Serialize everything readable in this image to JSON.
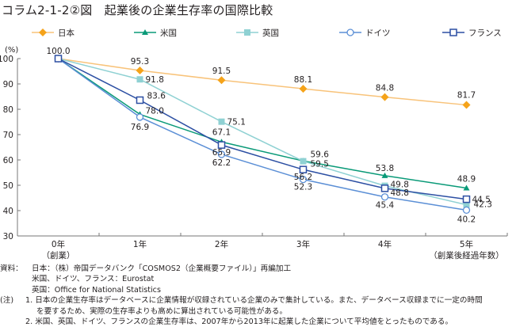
{
  "title": "コラム2-1-2②図　起業後の企業生存率の国際比較",
  "chart_data": {
    "type": "line",
    "title": "起業後の企業生存率の国際比較",
    "ylabel": "(%)",
    "xlabel": "（創業後経過年数）",
    "ylim": [
      30,
      100
    ],
    "yticks": [
      30,
      40,
      50,
      60,
      70,
      80,
      90,
      100
    ],
    "grid": false,
    "legend_position": "top",
    "categories": [
      "0年",
      "1年",
      "2年",
      "3年",
      "4年",
      "5年"
    ],
    "category_sublabels": [
      "（創業）",
      "",
      "",
      "",
      "",
      "（創業後経過年数）"
    ],
    "series": [
      {
        "name": "日本",
        "marker": "diamond-filled",
        "color": "#f5a31a",
        "line_color": "#f8c37a",
        "values": [
          100.0,
          95.3,
          91.5,
          88.1,
          84.8,
          81.7
        ]
      },
      {
        "name": "米国",
        "marker": "triangle-filled",
        "color": "#0a9a78",
        "line_color": "#0a9a78",
        "values": [
          100.0,
          78.0,
          67.1,
          59.6,
          53.8,
          48.9
        ]
      },
      {
        "name": "英国",
        "marker": "square-filled",
        "color": "#8fd1d3",
        "line_color": "#8fd1d3",
        "values": [
          100.0,
          91.8,
          75.1,
          59.5,
          49.8,
          42.3
        ]
      },
      {
        "name": "ドイツ",
        "marker": "circle-open",
        "color": "#5b8fd6",
        "line_color": "#5b8fd6",
        "values": [
          100.0,
          76.9,
          62.2,
          52.3,
          45.4,
          40.2
        ]
      },
      {
        "name": "フランス",
        "marker": "square-open",
        "color": "#2c4fa3",
        "line_color": "#2c4fa3",
        "values": [
          100.0,
          83.6,
          65.9,
          56.2,
          48.8,
          44.5
        ]
      }
    ],
    "data_labels": [
      {
        "series": "フランス",
        "index": 0,
        "text": "100.0"
      },
      {
        "series": "日本",
        "index": 1,
        "text": "95.3"
      },
      {
        "series": "英国",
        "index": 1,
        "text": "91.8"
      },
      {
        "series": "フランス",
        "index": 1,
        "text": "83.6"
      },
      {
        "series": "米国",
        "index": 1,
        "text": "78.0"
      },
      {
        "series": "ドイツ",
        "index": 1,
        "text": "76.9"
      },
      {
        "series": "日本",
        "index": 2,
        "text": "91.5"
      },
      {
        "series": "英国",
        "index": 2,
        "text": "75.1"
      },
      {
        "series": "米国",
        "index": 2,
        "text": "67.1"
      },
      {
        "series": "フランス",
        "index": 2,
        "text": "65.9"
      },
      {
        "series": "ドイツ",
        "index": 2,
        "text": "62.2"
      },
      {
        "series": "日本",
        "index": 3,
        "text": "88.1"
      },
      {
        "series": "米国",
        "index": 3,
        "text": "59.6"
      },
      {
        "series": "英国",
        "index": 3,
        "text": "59.5"
      },
      {
        "series": "フランス",
        "index": 3,
        "text": "56.2"
      },
      {
        "series": "ドイツ",
        "index": 3,
        "text": "52.3"
      },
      {
        "series": "日本",
        "index": 4,
        "text": "84.8"
      },
      {
        "series": "米国",
        "index": 4,
        "text": "53.8"
      },
      {
        "series": "英国",
        "index": 4,
        "text": "49.8"
      },
      {
        "series": "フランス",
        "index": 4,
        "text": "48.8"
      },
      {
        "series": "ドイツ",
        "index": 4,
        "text": "45.4"
      },
      {
        "series": "日本",
        "index": 5,
        "text": "81.7"
      },
      {
        "series": "米国",
        "index": 5,
        "text": "48.9"
      },
      {
        "series": "フランス",
        "index": 5,
        "text": "44.5"
      },
      {
        "series": "英国",
        "index": 5,
        "text": "42.3"
      },
      {
        "series": "ドイツ",
        "index": 5,
        "text": "40.2"
      }
    ]
  },
  "notes": {
    "source_label": "資料：",
    "source_lines": [
      "日本：（株）帝国データバンク「COSMOS2（企業概要ファイル）」再編加工",
      "米国、ドイツ、フランス：Eurostat",
      "英国：Office for National Statistics"
    ],
    "note_label": "(注)",
    "note_lines": [
      "1. 日本の企業生存率はデータベースに企業情報が収録されている企業のみで集計している。また、データベース収録までに一定の時間",
      "を要するため、実際の生存率よりも高めに算出されている可能性がある。",
      "2. 米国、英国、ドイツ、フランスの企業生存率は、2007年から2013年に起業した企業について平均値をとったものである。"
    ]
  }
}
